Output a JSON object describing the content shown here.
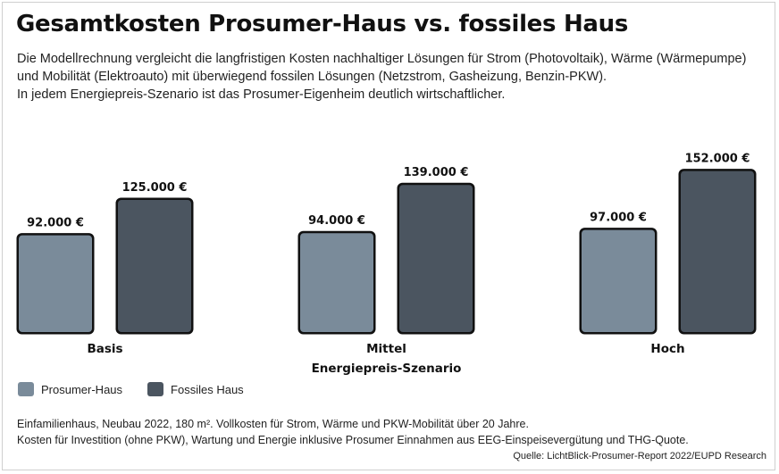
{
  "title": "Gesamtkosten Prosumer-Haus vs. fossiles Haus",
  "subtitle": {
    "line1": "Die Modellrechnung vergleicht die langfristigen Kosten nachhaltiger Lösungen für Strom (Photovoltaik), Wärme (Wärmepumpe)",
    "line2": "und Mobilität (Elektroauto) mit überwiegend fossilen Lösungen (Netzstrom, Gasheizung, Benzin-PKW).",
    "line3": "In jedem Energiepreis-Szenario ist das Prosumer-Eigenheim deutlich wirtschaftlicher."
  },
  "chart_data": {
    "type": "bar",
    "categories": [
      "Basis",
      "Mittel",
      "Hoch"
    ],
    "x_axis_caption": "Energiepreis-Szenario",
    "series": [
      {
        "name": "Prosumer-Haus",
        "values": [
          92000,
          94000,
          97000
        ],
        "labels": [
          "92.000 €",
          "94.000 €",
          "97.000 €"
        ],
        "color": "#7a8b9a"
      },
      {
        "name": "Fossiles Haus",
        "values": [
          125000,
          139000,
          152000
        ],
        "labels": [
          "125.000 €",
          "139.000 €",
          "152.000 €"
        ],
        "color": "#4b5560"
      }
    ],
    "ylim": [
      0,
      165000
    ],
    "grid": false,
    "legend_position": "bottom-left"
  },
  "footnote": {
    "line1": "Einfamilienhaus, Neubau 2022, 180 m². Vollkosten für Strom, Wärme und PKW-Mobilität über 20 Jahre.",
    "line2": "Kosten für Investition (ohne PKW), Wartung und Energie inklusive Prosumer Einnahmen aus EEG-Einspeisevergütung und THG-Quote."
  },
  "source": "Quelle: LichtBlick-Prosumer-Report 2022/EUPD Research"
}
